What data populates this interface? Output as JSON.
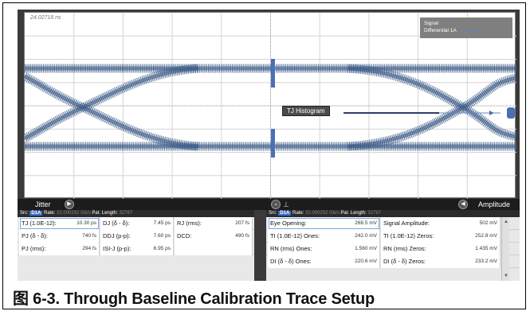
{
  "scope": {
    "timestamp": "24.02718 ns",
    "legend_title": "Signal",
    "legend_series": "Differential 1A",
    "tj_histogram_label": "TJ Histogram"
  },
  "jitter_panel": {
    "title": "Jitter",
    "src_label": "Src:",
    "src_badge": "D1A",
    "rate_label": "Rate:",
    "rate_value": "32.000292 Gb/s",
    "pat_label": "Pat. Length:",
    "pat_value": "32767",
    "rows": [
      [
        {
          "label": "TJ (1.0E-12):",
          "value": "10.30 ps"
        },
        {
          "label": "DJ (δ - δ):",
          "value": "7.45 ps"
        },
        {
          "label": "RJ (rms):",
          "value": "207 fs"
        }
      ],
      [
        {
          "label": "PJ (δ - δ):",
          "value": "740 fs"
        },
        {
          "label": "DDJ (p-p):",
          "value": "7.60 ps"
        },
        {
          "label": "DCD:",
          "value": "490 fs"
        }
      ],
      [
        {
          "label": "PJ (rms):",
          "value": "294 fs"
        },
        {
          "label": "ISI-J (p-p):",
          "value": "6.95 ps"
        },
        {
          "label": "",
          "value": ""
        }
      ]
    ]
  },
  "amplitude_panel": {
    "title": "Amplitude",
    "src_label": "Src:",
    "src_badge": "D1A",
    "rate_label": "Rate:",
    "rate_value": "32.000292 Gb/s",
    "pat_label": "Pat. Length:",
    "pat_value": "32767",
    "rows": [
      [
        {
          "label": "Eye Opening:",
          "value": "268.5 mV"
        },
        {
          "label": "Signal Amplitude:",
          "value": "502 mV"
        }
      ],
      [
        {
          "label": "TI (1.0E-12) Ones:",
          "value": "242.0 mV"
        },
        {
          "label": "TI (1.0E-12) Zeros:",
          "value": "252.8 mV"
        }
      ],
      [
        {
          "label": "RN (rms) Ones:",
          "value": "1.560 mV"
        },
        {
          "label": "RN (rms) Zeros:",
          "value": "1.435 mV"
        }
      ],
      [
        {
          "label": "DI (δ - δ) Ones:",
          "value": "220.6 mV"
        },
        {
          "label": "DI (δ - δ) Zeros:",
          "value": "233.2 mV"
        }
      ]
    ]
  },
  "caption": "图 6-3. Through Baseline Calibration Trace Setup",
  "colors": {
    "trace": "#3b5a86",
    "marker": "#4a6fb5",
    "panel_bar": "#1c1c1c",
    "badge": "#3b6fd1"
  }
}
